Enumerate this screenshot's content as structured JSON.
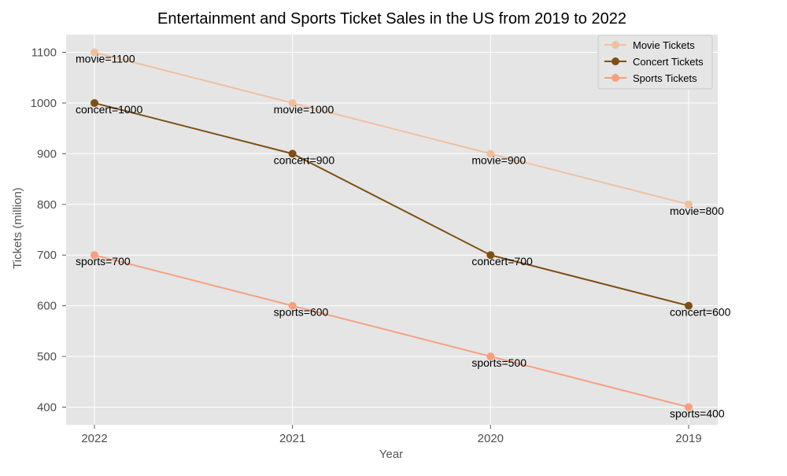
{
  "chart_data": {
    "type": "line",
    "title": "Entertainment and Sports Ticket Sales in the US from 2019 to 2022",
    "xlabel": "Year",
    "ylabel": "Tickets (million)",
    "categories": [
      "2022",
      "2021",
      "2020",
      "2019"
    ],
    "ylim": [
      365,
      1135
    ],
    "yticks": [
      400,
      500,
      600,
      700,
      800,
      900,
      1000,
      1100
    ],
    "grid": true,
    "legend_position": "top-right",
    "series": [
      {
        "name": "Movie Tickets",
        "color": "#efc0a0",
        "values": [
          1100,
          1000,
          900,
          800
        ],
        "labels": [
          "movie=1100",
          "movie=1000",
          "movie=900",
          "movie=800"
        ]
      },
      {
        "name": "Concert Tickets",
        "color": "#7d5016",
        "values": [
          1000,
          900,
          700,
          600
        ],
        "labels": [
          "concert=1000",
          "concert=900",
          "concert=700",
          "concert=600"
        ]
      },
      {
        "name": "Sports Tickets",
        "color": "#f5a080",
        "values": [
          700,
          600,
          500,
          400
        ],
        "labels": [
          "sports=700",
          "sports=600",
          "sports=500",
          "sports=400"
        ]
      }
    ]
  }
}
